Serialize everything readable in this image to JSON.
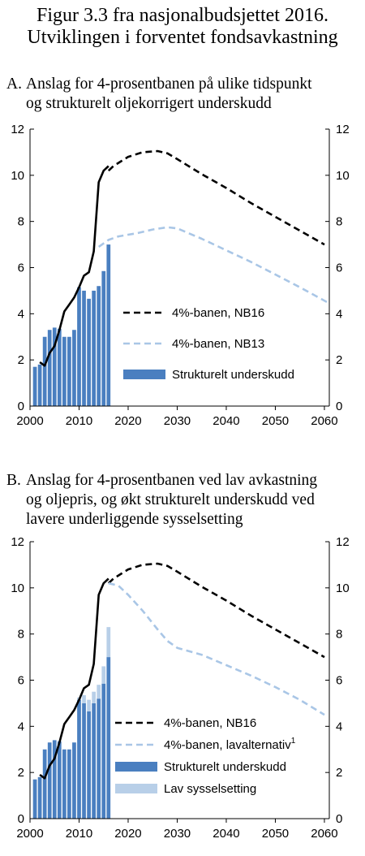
{
  "figure": {
    "title_line1": "Figur 3.3 fra nasjonalbudsjettet 2016.",
    "title_line2": "Utviklingen i forventet fondsavkastning"
  },
  "colors": {
    "bar_main": "#4a7fc0",
    "bar_light": "#b8cfe8",
    "line_dark": "#000000",
    "line_light": "#a9c6e6"
  },
  "chart_data": [
    {
      "type": "bar",
      "panel_letter": "A.",
      "title_line1": "Anslag for 4-prosentbanen  på ulike tidspunkt",
      "title_line2": "og strukturelt oljekorrigert underskudd",
      "xlim": [
        2000,
        2061
      ],
      "ylim": [
        0,
        12
      ],
      "xticks": [
        2000,
        2010,
        2020,
        2030,
        2040,
        2050,
        2060
      ],
      "yticks": [
        0,
        2,
        4,
        6,
        8,
        10,
        12
      ],
      "grid": false,
      "legend_position": "center-right",
      "series": [
        {
          "name": "4%-banen, NB16",
          "kind": "dashed-line",
          "color": "#000000",
          "x": [
            2016,
            2017,
            2020,
            2023,
            2026,
            2028,
            2030,
            2035,
            2040,
            2045,
            2050,
            2055,
            2060
          ],
          "values": [
            10.2,
            10.4,
            10.8,
            11.0,
            11.05,
            10.95,
            10.7,
            10.05,
            9.45,
            8.8,
            8.2,
            7.6,
            7.0
          ]
        },
        {
          "name": "4%-banen, NB13",
          "kind": "dashed-line",
          "color": "#a9c6e6",
          "x": [
            2014,
            2016,
            2018,
            2022,
            2025,
            2028,
            2030,
            2035,
            2040,
            2045,
            2050,
            2055,
            2061
          ],
          "values": [
            6.9,
            7.2,
            7.35,
            7.5,
            7.65,
            7.75,
            7.7,
            7.25,
            6.75,
            6.25,
            5.7,
            5.15,
            4.45
          ]
        },
        {
          "name": "Strukturelt underskudd",
          "kind": "bar",
          "color": "#4a7fc0",
          "x": [
            2001,
            2002,
            2003,
            2004,
            2005,
            2006,
            2007,
            2008,
            2009,
            2010,
            2011,
            2012,
            2013,
            2014,
            2015,
            2016
          ],
          "values": [
            1.7,
            1.8,
            3.0,
            3.3,
            3.4,
            3.35,
            3.0,
            3.0,
            3.3,
            5.15,
            5.0,
            4.65,
            5.0,
            5.2,
            5.85,
            7.0
          ]
        },
        {
          "name": "",
          "kind": "line",
          "color": "#000000",
          "x": [
            2002,
            2003,
            2004,
            2005,
            2006,
            2007,
            2008,
            2009,
            2010,
            2011,
            2012,
            2013,
            2014,
            2015,
            2016
          ],
          "values": [
            1.9,
            1.75,
            2.3,
            2.6,
            3.3,
            4.1,
            4.4,
            4.7,
            5.15,
            5.65,
            5.8,
            6.7,
            9.7,
            10.2,
            10.4
          ]
        }
      ]
    },
    {
      "type": "bar",
      "panel_letter": "B.",
      "title_line1": "Anslag for 4-prosentbanen ved lav avkastning",
      "title_line2": "og oljepris, og økt strukturelt underskudd ved",
      "title_line3": "lavere underliggende sysselsetting",
      "xlim": [
        2000,
        2061
      ],
      "ylim": [
        0,
        12
      ],
      "xticks": [
        2000,
        2010,
        2020,
        2030,
        2040,
        2050,
        2060
      ],
      "yticks": [
        0,
        2,
        4,
        6,
        8,
        10,
        12
      ],
      "grid": false,
      "legend_position": "lower-right",
      "series": [
        {
          "name": "4%-banen, NB16",
          "kind": "dashed-line",
          "color": "#000000",
          "x": [
            2016,
            2017,
            2020,
            2023,
            2026,
            2028,
            2030,
            2035,
            2040,
            2045,
            2050,
            2055,
            2060
          ],
          "values": [
            10.2,
            10.4,
            10.8,
            11.0,
            11.05,
            10.95,
            10.7,
            10.05,
            9.45,
            8.8,
            8.2,
            7.6,
            7.0
          ]
        },
        {
          "name": "4%-banen, lavalternativ",
          "superscript": "1",
          "kind": "dashed-line",
          "color": "#a9c6e6",
          "x": [
            2016,
            2018,
            2020,
            2023,
            2026,
            2028,
            2030,
            2035,
            2040,
            2045,
            2050,
            2055,
            2060
          ],
          "values": [
            10.2,
            10.1,
            9.7,
            9.0,
            8.2,
            7.7,
            7.4,
            7.1,
            6.65,
            6.2,
            5.7,
            5.15,
            4.5
          ]
        },
        {
          "name": "Strukturelt underskudd",
          "kind": "bar",
          "color": "#4a7fc0",
          "x": [
            2001,
            2002,
            2003,
            2004,
            2005,
            2006,
            2007,
            2008,
            2009,
            2010,
            2011,
            2012,
            2013,
            2014,
            2015,
            2016
          ],
          "values": [
            1.7,
            1.8,
            3.0,
            3.3,
            3.4,
            3.35,
            3.0,
            3.0,
            3.3,
            5.15,
            5.0,
            4.65,
            5.0,
            5.2,
            5.85,
            7.0
          ]
        },
        {
          "name": "Lav sysselsetting",
          "kind": "bar-stacked",
          "color": "#b8cfe8",
          "x": [
            2010,
            2011,
            2012,
            2013,
            2014,
            2015,
            2016
          ],
          "values": [
            0.1,
            0.35,
            0.5,
            0.5,
            0.6,
            0.75,
            1.3
          ]
        },
        {
          "name": "",
          "kind": "line",
          "color": "#000000",
          "x": [
            2002,
            2003,
            2004,
            2005,
            2006,
            2007,
            2008,
            2009,
            2010,
            2011,
            2012,
            2013,
            2014,
            2015,
            2016
          ],
          "values": [
            1.9,
            1.75,
            2.3,
            2.6,
            3.3,
            4.1,
            4.4,
            4.7,
            5.15,
            5.65,
            5.8,
            6.7,
            9.7,
            10.2,
            10.4
          ]
        }
      ]
    }
  ]
}
